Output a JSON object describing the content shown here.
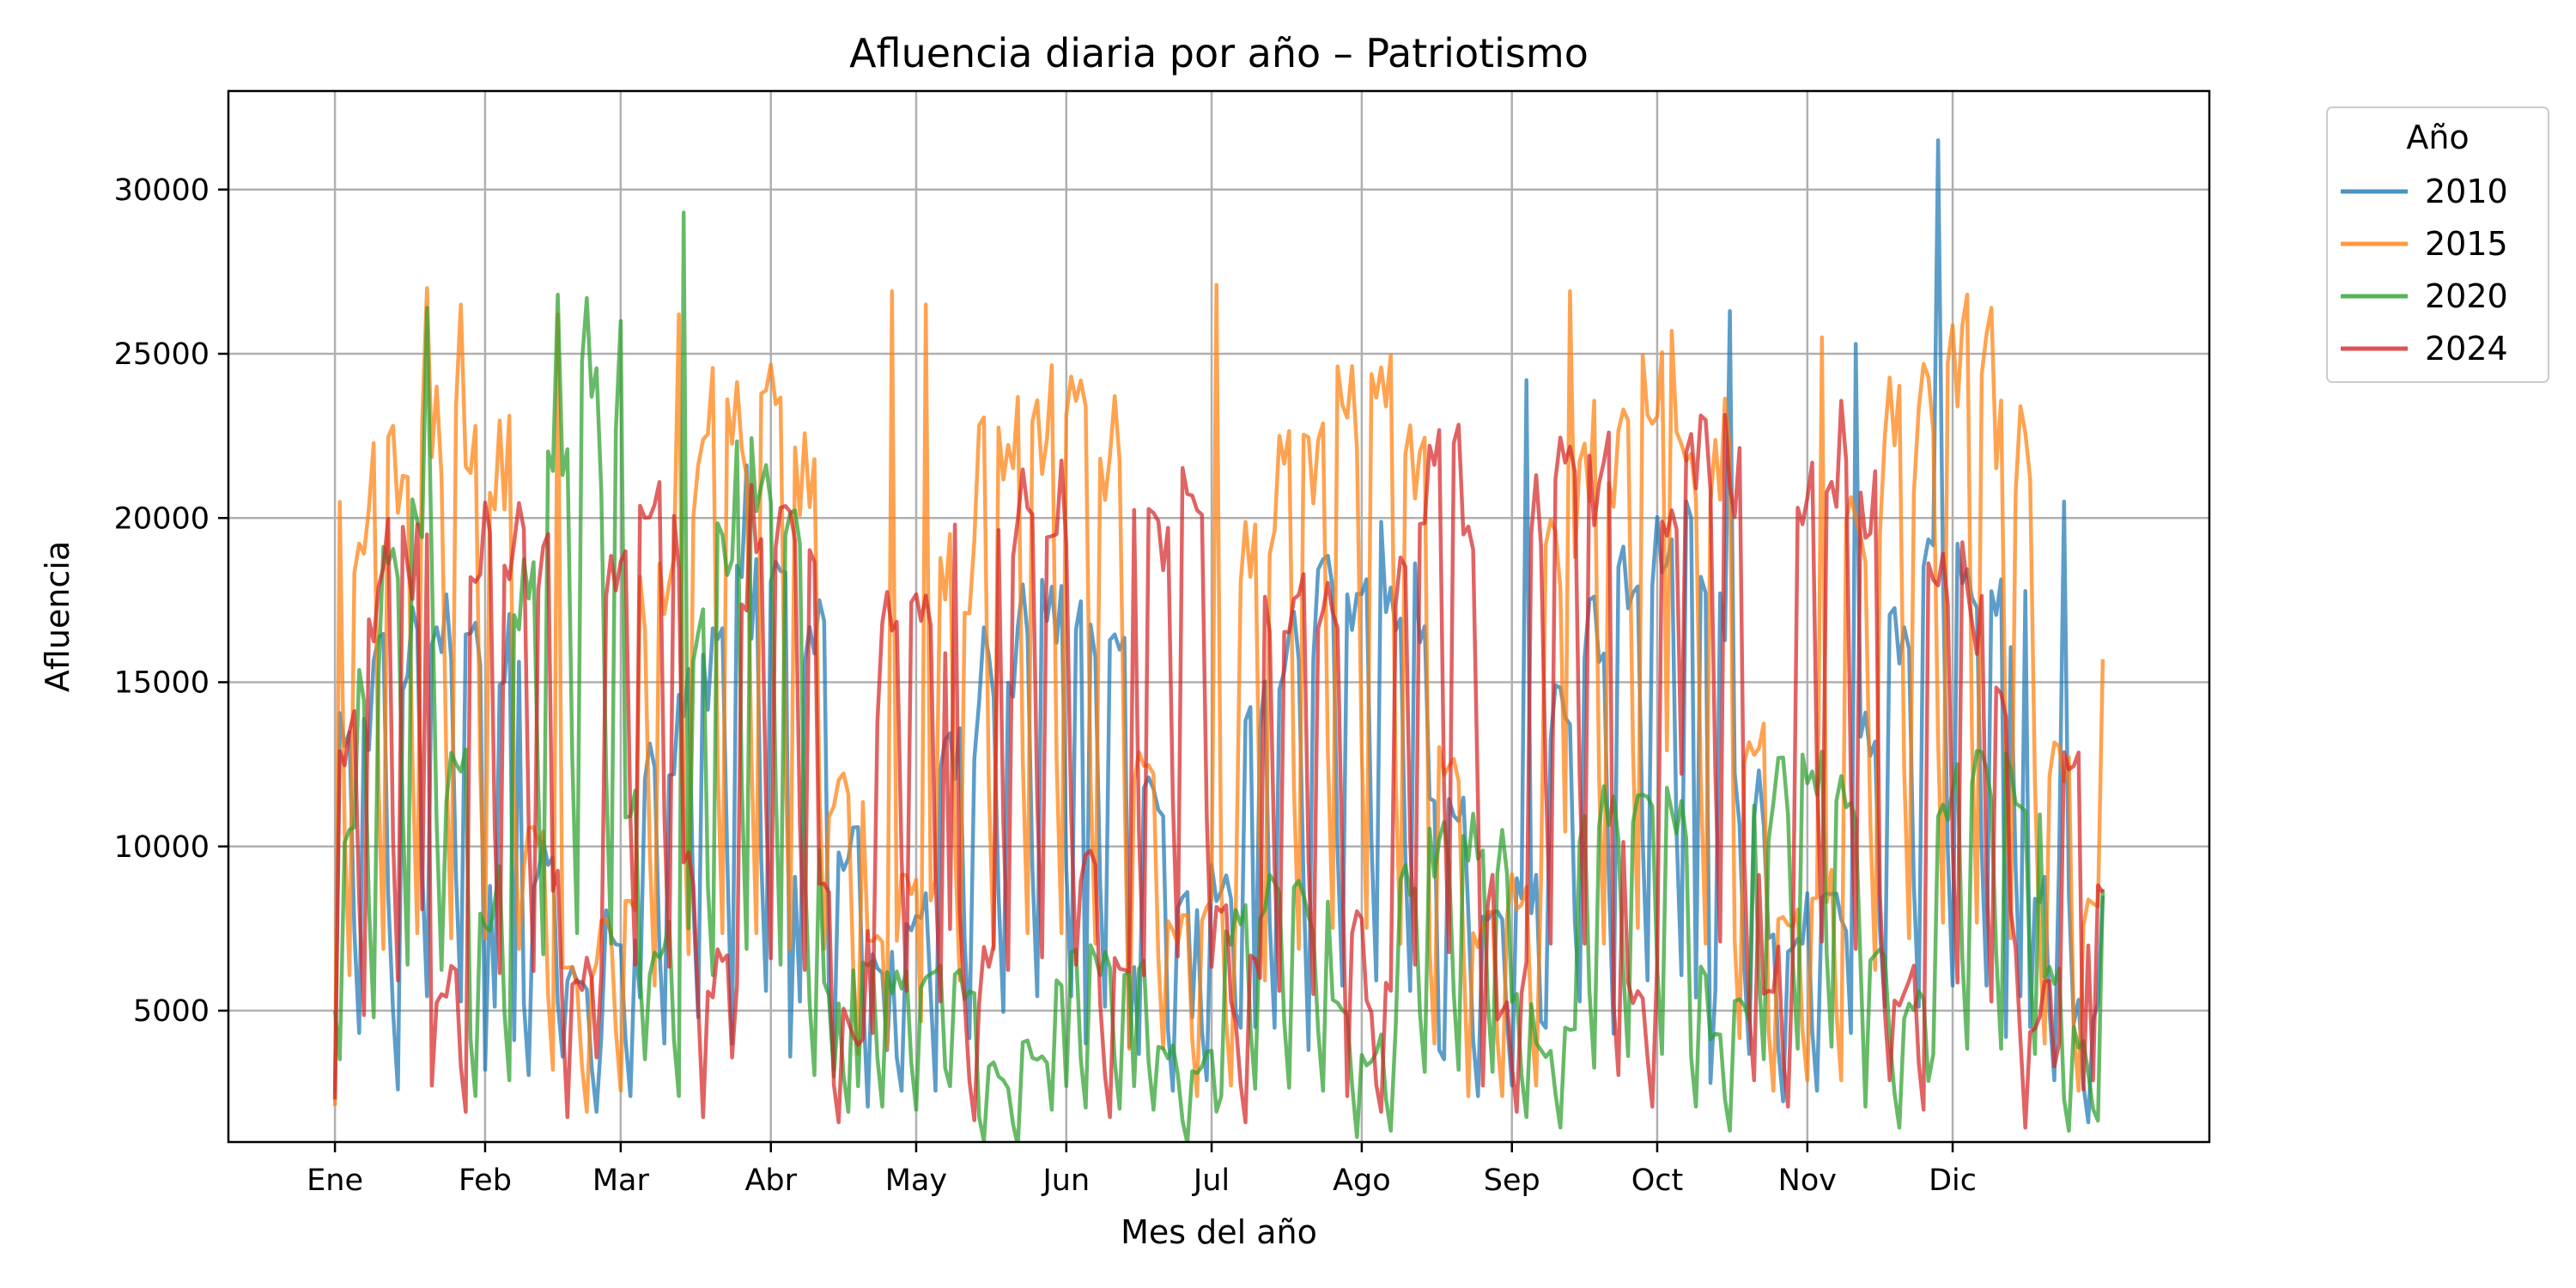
{
  "chart_data": {
    "type": "line",
    "title": "Afluencia diaria por año – Patriotismo",
    "xlabel": "Mes del año",
    "ylabel": "Afluencia",
    "x_range": [
      1,
      366
    ],
    "x_ticks": [
      {
        "day": 1,
        "label": "Ene"
      },
      {
        "day": 32,
        "label": "Feb"
      },
      {
        "day": 60,
        "label": "Mar"
      },
      {
        "day": 91,
        "label": "Abr"
      },
      {
        "day": 121,
        "label": "May"
      },
      {
        "day": 152,
        "label": "Jun"
      },
      {
        "day": 182,
        "label": "Jul"
      },
      {
        "day": 213,
        "label": "Ago"
      },
      {
        "day": 244,
        "label": "Sep"
      },
      {
        "day": 274,
        "label": "Oct"
      },
      {
        "day": 305,
        "label": "Nov"
      },
      {
        "day": 335,
        "label": "Dic"
      }
    ],
    "ylim": [
      1000,
      33000
    ],
    "y_ticks": [
      5000,
      10000,
      15000,
      20000,
      25000,
      30000
    ],
    "grid": true,
    "legend": {
      "title": "Año",
      "placement": "outside-top-right"
    },
    "series": [
      {
        "name": "2010",
        "color": "#1f77b4",
        "weekday_base": [
          13500,
          15500,
          17000,
          16500,
          16000,
          9500,
          6000,
          7500,
          12500,
          15000,
          17500,
          17500,
          16500,
          10000,
          6500,
          8000,
          13000,
          15500,
          17000,
          17000,
          16000,
          11500,
          8000,
          9000,
          14000,
          16000,
          18000,
          18500,
          17500,
          11000,
          7500,
          8500,
          14000,
          16500,
          18500,
          19000,
          17500,
          11500,
          7000,
          8000,
          13500,
          16000,
          18000,
          18000,
          17000,
          9000,
          5000
        ],
        "points": [
          [
            1,
            2500
          ],
          [
            14,
            2600
          ],
          [
            32,
            3200
          ],
          [
            38,
            4100
          ],
          [
            48,
            3600
          ],
          [
            56,
            4200
          ],
          [
            64,
            5400
          ],
          [
            83,
            4000
          ],
          [
            86,
            21600
          ],
          [
            95,
            3600
          ],
          [
            115,
            3800
          ],
          [
            124,
            5500
          ],
          [
            156,
            4000
          ],
          [
            165,
            3900
          ],
          [
            178,
            4800
          ],
          [
            191,
            4500
          ],
          [
            202,
            3800
          ],
          [
            229,
            3800
          ],
          [
            247,
            24200
          ],
          [
            265,
            4300
          ],
          [
            282,
            5400
          ],
          [
            285,
            2800
          ],
          [
            289,
            26300
          ],
          [
            306,
            4400
          ],
          [
            315,
            25300
          ],
          [
            346,
            4200
          ],
          [
            332,
            31500
          ],
          [
            351,
            4500
          ],
          [
            358,
            20500
          ],
          [
            366,
            8500
          ]
        ]
      },
      {
        "name": "2015",
        "color": "#ff7f0e",
        "weekday_base": [
          19000,
          21500,
          23000,
          22500,
          21500,
          10000,
          6000,
          8000,
          18000,
          21000,
          23000,
          23000,
          21500,
          11500,
          7000,
          8500,
          18500,
          21500,
          23000,
          23000,
          22000,
          12000,
          7500,
          8500,
          18500,
          21500,
          23500,
          23500,
          22000,
          12500,
          7500,
          8500,
          19000,
          22000,
          23500,
          23500,
          22000,
          13000,
          8000,
          9000,
          19500,
          22500,
          24000,
          24000,
          22500,
          12500,
          8000
        ],
        "points": [
          [
            1,
            2100
          ],
          [
            20,
            27000
          ],
          [
            27,
            26500
          ],
          [
            47,
            26200
          ],
          [
            72,
            26200
          ],
          [
            116,
            26900
          ],
          [
            123,
            26500
          ],
          [
            183,
            27100
          ],
          [
            256,
            26900
          ],
          [
            277,
            25700
          ],
          [
            308,
            25500
          ],
          [
            338,
            26800
          ],
          [
            343,
            26400
          ],
          [
            366,
            15700
          ]
        ]
      },
      {
        "name": "2020",
        "color": "#2ca02c",
        "weekday_base": [
          11000,
          15000,
          18000,
          20000,
          19500,
          12000,
          7500,
          9000,
          18000,
          21000,
          23000,
          23500,
          22000,
          11000,
          6500,
          7500,
          16000,
          19000,
          21500,
          21500,
          20000,
          9500,
          5500,
          6000,
          6500,
          6000,
          6200,
          5900,
          5800,
          3200,
          2800,
          3800,
          6200,
          6400,
          6500,
          6300,
          6200,
          3800,
          3000,
          3500,
          7500,
          8200,
          8500,
          8300,
          8000,
          5000,
          3600,
          4200,
          9000,
          9800,
          10000,
          10200,
          9800,
          5500,
          3800,
          4500,
          10200,
          11000,
          11300,
          11500,
          11000,
          6500,
          4200,
          5000,
          11000,
          11800,
          12000,
          12200,
          11500,
          6500,
          4500,
          5200,
          11500,
          12000,
          12200,
          12000,
          11500,
          6200,
          4200,
          3000
        ],
        "points": [
          [
            1,
            5000
          ],
          [
            20,
            26400
          ],
          [
            47,
            26800
          ],
          [
            53,
            26700
          ],
          [
            60,
            26000
          ],
          [
            73,
            29300
          ],
          [
            104,
            3000
          ],
          [
            109,
            2700
          ],
          [
            128,
            2700
          ],
          [
            152,
            2700
          ],
          [
            166,
            2700
          ],
          [
            364,
            2000
          ],
          [
            366,
            8700
          ]
        ]
      },
      {
        "name": "2024",
        "color": "#d62728",
        "weekday_base": [
          13000,
          15200,
          17500,
          18500,
          18500,
          8500,
          5200,
          6000,
          18000,
          19200,
          19500,
          19400,
          19200,
          9000,
          5500,
          6500,
          19000,
          19800,
          20000,
          20000,
          19800,
          9500,
          5500,
          6500,
          18000,
          19500,
          20600,
          20500,
          19500,
          8500,
          5000,
          4200,
          13500,
          17000,
          17500,
          17000,
          16500,
          8000,
          5200,
          6500,
          19500,
          20700,
          20700,
          20500,
          20000,
          9500,
          5500,
          6500,
          19000,
          20000,
          20800,
          20500,
          19800,
          8000,
          5000,
          6200,
          17000,
          17500,
          17400,
          17200,
          17000,
          7500,
          5000,
          6000,
          18500,
          20000,
          21300,
          21200,
          20500,
          8500,
          5000,
          6000,
          20500,
          22000,
          22100,
          22000,
          21500,
          9500,
          5500,
          6500,
          21000,
          22200,
          22400,
          22200,
          21500,
          9000,
          5500,
          6500,
          20800,
          22200,
          22000,
          21500,
          20500,
          9000,
          5500,
          6200,
          17800,
          18300,
          18000,
          16500,
          14500,
          7500,
          4500,
          6000,
          12500,
          12700,
          9000
        ],
        "points": [
          [
            1,
            2300
          ],
          [
            20,
            19500
          ],
          [
            129,
            19800
          ],
          [
            234,
            19500
          ],
          [
            280,
            22000
          ],
          [
            362,
            2600
          ],
          [
            366,
            8600
          ]
        ]
      }
    ]
  }
}
